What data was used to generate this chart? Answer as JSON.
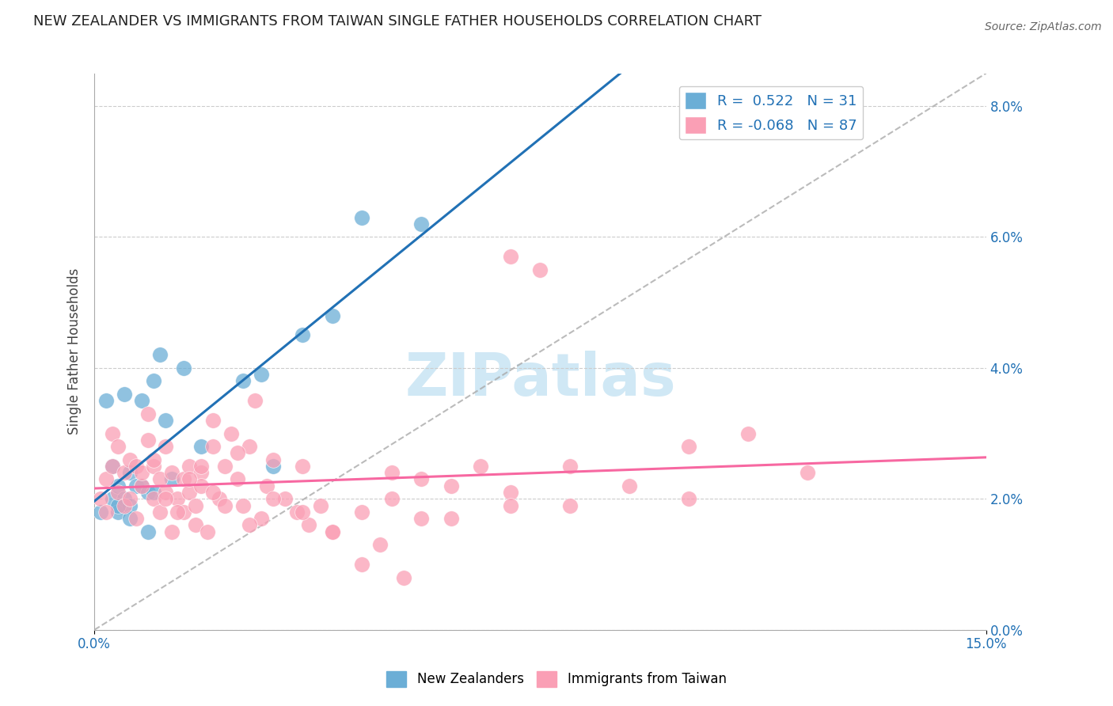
{
  "title": "NEW ZEALANDER VS IMMIGRANTS FROM TAIWAN SINGLE FATHER HOUSEHOLDS CORRELATION CHART",
  "source": "Source: ZipAtlas.com",
  "xmin": 0.0,
  "xmax": 15.0,
  "ymin": 0.0,
  "ymax": 8.5,
  "ylabel": "Single Father Households",
  "legend_blue_r": "R =  0.522",
  "legend_blue_n": "N = 31",
  "legend_pink_r": "R = -0.068",
  "legend_pink_n": "N = 87",
  "blue_color": "#6baed6",
  "pink_color": "#fa9fb5",
  "blue_line_color": "#2171b5",
  "pink_line_color": "#f768a1",
  "legend_text_color": "#2171b5",
  "watermark_color": "#d0e8f5",
  "nz_points_x": [
    0.1,
    0.2,
    0.3,
    0.3,
    0.4,
    0.4,
    0.5,
    0.5,
    0.6,
    0.6,
    0.7,
    0.8,
    0.8,
    0.9,
    1.0,
    1.0,
    1.1,
    1.2,
    1.3,
    1.5,
    1.8,
    2.5,
    2.8,
    3.0,
    3.5,
    4.0,
    4.5,
    5.5,
    0.4,
    0.6,
    0.9
  ],
  "nz_points_y": [
    1.8,
    3.5,
    2.0,
    2.5,
    1.8,
    2.2,
    2.0,
    3.6,
    1.9,
    2.4,
    2.2,
    3.5,
    2.2,
    2.1,
    3.8,
    2.1,
    4.2,
    3.2,
    2.3,
    4.0,
    2.8,
    3.8,
    3.9,
    2.5,
    4.5,
    4.8,
    6.3,
    6.2,
    1.9,
    1.7,
    1.5
  ],
  "tw_points_x": [
    0.1,
    0.2,
    0.2,
    0.3,
    0.3,
    0.4,
    0.4,
    0.5,
    0.5,
    0.6,
    0.6,
    0.7,
    0.7,
    0.8,
    0.8,
    0.9,
    0.9,
    1.0,
    1.0,
    1.1,
    1.1,
    1.2,
    1.2,
    1.3,
    1.3,
    1.4,
    1.5,
    1.5,
    1.6,
    1.6,
    1.7,
    1.7,
    1.8,
    1.8,
    1.9,
    2.0,
    2.0,
    2.1,
    2.2,
    2.3,
    2.4,
    2.5,
    2.6,
    2.7,
    2.8,
    2.9,
    3.0,
    3.2,
    3.4,
    3.5,
    3.6,
    3.8,
    4.0,
    4.5,
    5.0,
    5.5,
    6.0,
    6.5,
    7.0,
    7.0,
    7.5,
    8.0,
    9.0,
    10.0,
    11.0,
    12.0,
    1.0,
    1.2,
    1.4,
    1.6,
    1.8,
    2.0,
    2.2,
    2.4,
    2.6,
    3.0,
    3.5,
    4.0,
    5.0,
    5.5,
    6.0,
    7.0,
    8.0,
    10.0,
    4.5,
    4.8,
    5.2
  ],
  "tw_points_y": [
    2.0,
    1.8,
    2.3,
    2.5,
    3.0,
    2.8,
    2.1,
    1.9,
    2.4,
    2.6,
    2.0,
    1.7,
    2.5,
    2.2,
    2.4,
    3.3,
    2.9,
    2.5,
    2.0,
    1.8,
    2.3,
    2.1,
    2.8,
    2.4,
    1.5,
    2.0,
    2.3,
    1.8,
    2.5,
    2.1,
    1.6,
    1.9,
    2.4,
    2.2,
    1.5,
    2.8,
    3.2,
    2.0,
    2.5,
    3.0,
    2.3,
    1.9,
    2.8,
    3.5,
    1.7,
    2.2,
    2.6,
    2.0,
    1.8,
    2.5,
    1.6,
    1.9,
    1.5,
    1.8,
    2.0,
    2.3,
    1.7,
    2.5,
    2.1,
    5.7,
    5.5,
    1.9,
    2.2,
    2.8,
    3.0,
    2.4,
    2.6,
    2.0,
    1.8,
    2.3,
    2.5,
    2.1,
    1.9,
    2.7,
    1.6,
    2.0,
    1.8,
    1.5,
    2.4,
    1.7,
    2.2,
    1.9,
    2.5,
    2.0,
    1.0,
    1.3,
    0.8
  ]
}
